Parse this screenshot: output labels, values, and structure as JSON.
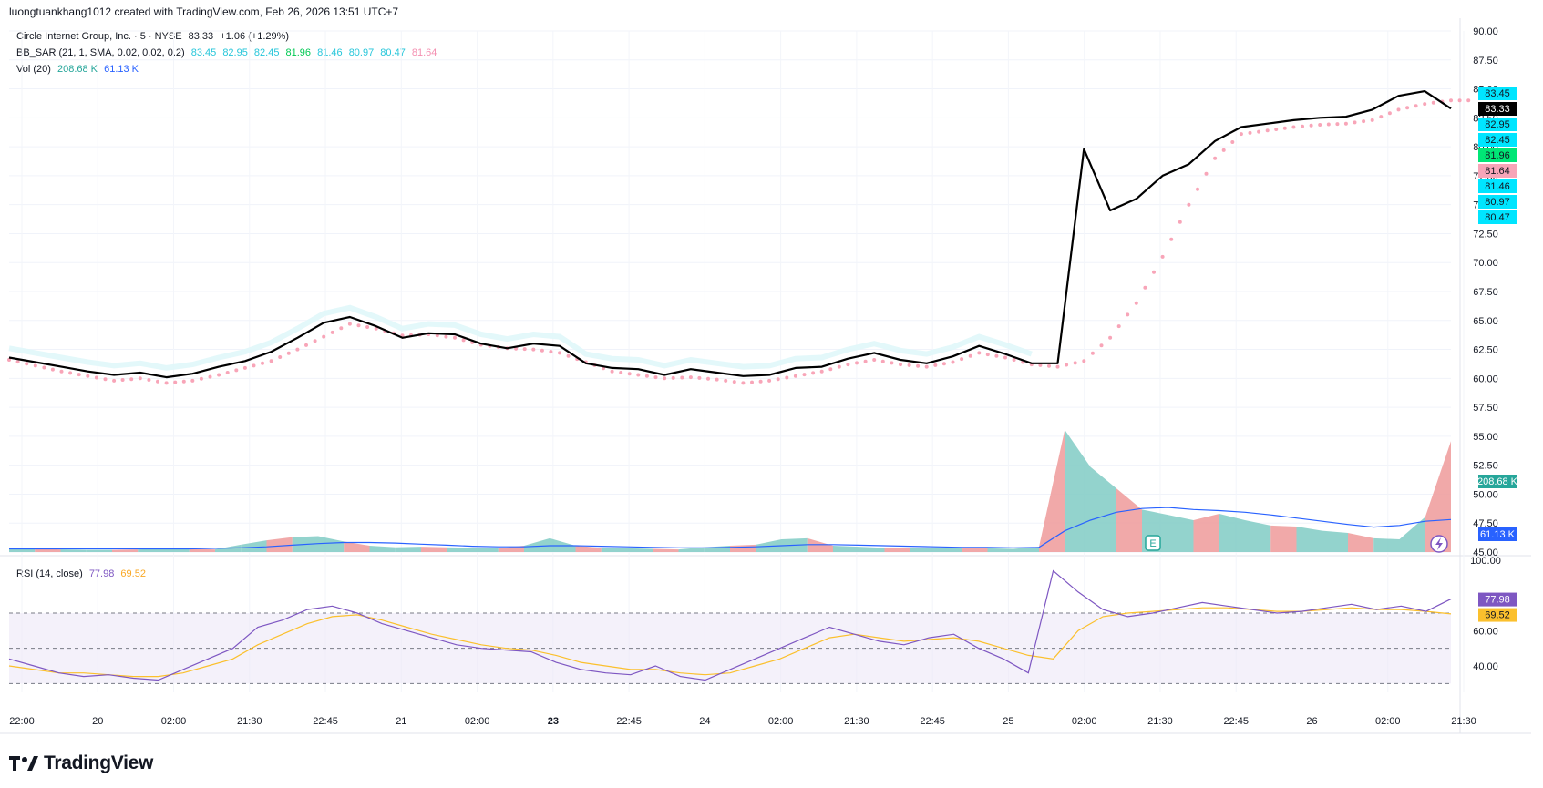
{
  "header": {
    "credit": "luongtuankhang1012 created with TradingView.com, Feb 26, 2026 13:51 UTC+7"
  },
  "legend": {
    "main": {
      "name": "Circle Internet Group, Inc. · 5 · NYSE",
      "price": "83.33",
      "change": "+1.06 (+1.29%)"
    },
    "bbsar": {
      "name": "BB_SAR (21, 1, SMA, 0.02, 0.02, 0.2)",
      "values": [
        "83.45",
        "82.95",
        "82.45",
        "81.96",
        "81.46",
        "80.97",
        "80.47",
        "81.64"
      ],
      "colors": [
        "#26c6da",
        "#26c6da",
        "#26c6da",
        "#00c853",
        "#26c6da",
        "#26c6da",
        "#26c6da",
        "#f48fb1"
      ]
    },
    "vol": {
      "name": "Vol (20)",
      "v1": "208.68 K",
      "v2": "61.13 K"
    },
    "rsi": {
      "name": "RSI (14, close)",
      "v1": "77.98",
      "v2": "69.52"
    }
  },
  "brand": {
    "name": "TradingView"
  },
  "colors": {
    "price": "#000000",
    "sar": "#f8a5b8",
    "rsi": "#7e57c2",
    "rsi_ma": "#fbc02d",
    "vol_up": "#80cbc4",
    "vol_down": "#ef9a9a",
    "vol_ma": "#2962ff",
    "band": "#e0f7fa"
  },
  "chart_data": [
    {
      "type": "line",
      "series_label": "Circle Internet Group, Inc. (CRCL) 5-minute price",
      "ylim": [
        45,
        90
      ],
      "y_ticks": [
        "45.00",
        "47.50",
        "50.00",
        "52.50",
        "55.00",
        "57.50",
        "60.00",
        "62.50",
        "65.00",
        "67.50",
        "70.00",
        "72.50",
        "75.00",
        "77.50",
        "80.00",
        "82.50",
        "85.00",
        "87.50",
        "90.00"
      ],
      "x_ticks": [
        "22:00",
        "20",
        "02:00",
        "21:30",
        "22:45",
        "21",
        "02:00",
        "23",
        "22:45",
        "24",
        "02:00",
        "21:30",
        "22:45",
        "25",
        "02:00",
        "21:30",
        "22:45",
        "26",
        "02:00",
        "21:30"
      ],
      "close": [
        61.8,
        61.4,
        61.0,
        60.6,
        60.3,
        60.5,
        60.1,
        60.4,
        61.0,
        61.5,
        62.3,
        63.5,
        64.8,
        65.3,
        64.5,
        63.5,
        63.9,
        63.8,
        63.0,
        62.6,
        63.0,
        62.8,
        61.3,
        60.9,
        60.8,
        60.3,
        60.8,
        60.5,
        60.2,
        60.3,
        60.9,
        61.0,
        61.7,
        62.2,
        61.6,
        61.3,
        61.9,
        62.8,
        62.1,
        61.3,
        61.3,
        79.8,
        74.5,
        75.5,
        77.5,
        78.5,
        80.5,
        81.7,
        82.0,
        82.3,
        82.5,
        82.6,
        83.2,
        84.4,
        84.8,
        83.3
      ],
      "sar": [
        61.6,
        61.1,
        60.6,
        60.2,
        59.8,
        60.0,
        59.6,
        59.8,
        60.3,
        60.9,
        61.5,
        62.5,
        63.6,
        64.7,
        64.3,
        63.7,
        63.8,
        63.5,
        62.9,
        62.6,
        62.5,
        62.2,
        61.4,
        60.6,
        60.3,
        60.0,
        60.1,
        59.9,
        59.6,
        59.8,
        60.2,
        60.6,
        61.2,
        61.6,
        61.2,
        61.0,
        61.4,
        62.2,
        61.8,
        61.2,
        61.0,
        61.5,
        63.5,
        66.5,
        70.5,
        75.0,
        79.0,
        81.1,
        81.4,
        81.7,
        81.9,
        82.0,
        82.3,
        83.2,
        83.7,
        84.0
      ],
      "sar_badge_values": [
        "83.45",
        "82.95",
        "82.45",
        "81.96",
        "81.64",
        "81.46",
        "80.97",
        "80.47"
      ],
      "last_price": "83.33"
    },
    {
      "type": "area",
      "series_label": "Volume",
      "values_k": [
        8,
        6,
        5,
        4,
        4,
        5,
        6,
        6,
        5,
        14,
        22,
        28,
        30,
        20,
        12,
        9,
        10,
        9,
        8,
        7,
        12,
        26,
        12,
        8,
        7,
        6,
        5,
        9,
        12,
        14,
        24,
        26,
        12,
        10,
        8,
        7,
        9,
        8,
        7,
        6,
        10,
        230,
        160,
        120,
        80,
        70,
        60,
        72,
        60,
        50,
        48,
        40,
        36,
        26,
        24,
        66,
        208.68
      ],
      "ma_values_k": [
        6,
        6,
        6,
        6,
        6,
        6,
        6,
        6,
        7,
        8,
        10,
        13,
        16,
        18,
        18,
        17,
        15,
        13,
        11,
        10,
        10,
        12,
        12,
        11,
        10,
        9,
        8,
        8,
        9,
        10,
        12,
        14,
        14,
        13,
        12,
        11,
        10,
        9,
        9,
        8,
        9,
        40,
        60,
        75,
        82,
        84,
        80,
        78,
        75,
        70,
        64,
        58,
        52,
        47,
        50,
        58,
        61.13
      ],
      "last_volume": "208.68 K",
      "volume_ma_last": "61.13 K"
    },
    {
      "type": "line",
      "series_label": "RSI (14, close)",
      "ylim": [
        25,
        100
      ],
      "y_ticks": [
        "40.00",
        "60.00",
        "100.00"
      ],
      "bands": [
        30,
        50,
        70
      ],
      "rsi": [
        44,
        40,
        36,
        34,
        35,
        33,
        32,
        38,
        44,
        50,
        62,
        66,
        72,
        74,
        70,
        64,
        60,
        56,
        52,
        50,
        49,
        48,
        42,
        38,
        36,
        35,
        40,
        34,
        32,
        38,
        44,
        50,
        56,
        62,
        58,
        54,
        52,
        56,
        58,
        50,
        44,
        36,
        94,
        82,
        72,
        68,
        70,
        73,
        76,
        74,
        72,
        70,
        71,
        73,
        75,
        72,
        74,
        71,
        77.98
      ],
      "rsi_ma": [
        40,
        38,
        36,
        36,
        35,
        34,
        34,
        36,
        40,
        44,
        52,
        58,
        64,
        68,
        69,
        66,
        62,
        58,
        55,
        52,
        50,
        49,
        46,
        42,
        40,
        38,
        38,
        36,
        35,
        36,
        40,
        44,
        50,
        56,
        58,
        56,
        54,
        55,
        56,
        54,
        50,
        46,
        44,
        60,
        68,
        70,
        71,
        72,
        73,
        73,
        72,
        71,
        71,
        72,
        73,
        72,
        72,
        71,
        69.52
      ],
      "last_rsi": "77.98",
      "last_rsi_ma": "69.52"
    }
  ]
}
